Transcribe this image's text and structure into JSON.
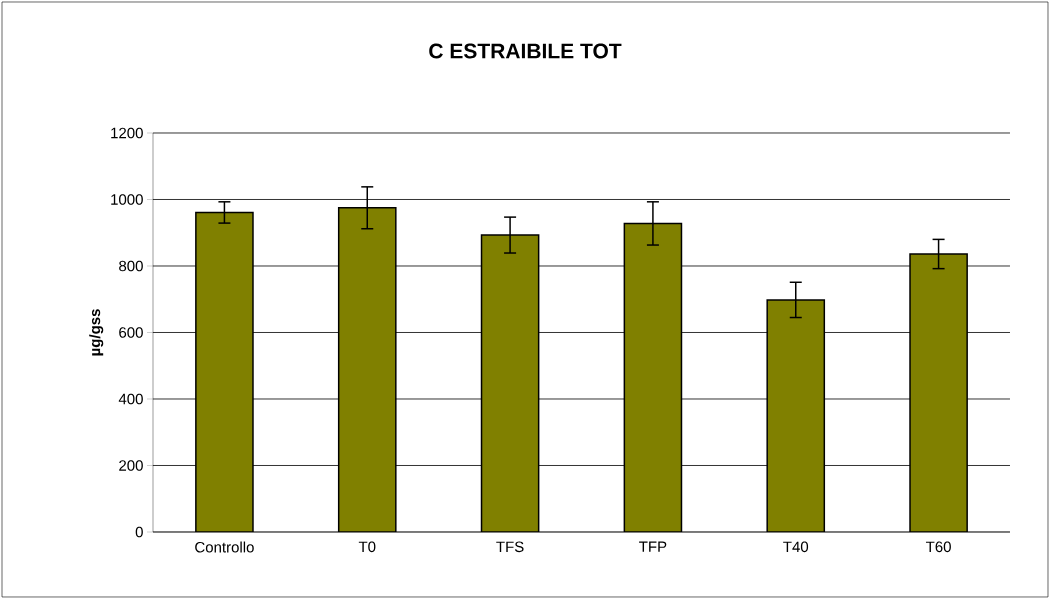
{
  "chart_data": {
    "type": "bar",
    "title": "C ESTRAIBILE TOT",
    "ylabel": "µg/gss",
    "categories": [
      "Controllo",
      "T0",
      "TFS",
      "TFP",
      "T40",
      "T60"
    ],
    "values": [
      961,
      975,
      893,
      928,
      698,
      836
    ],
    "errors": [
      32,
      63,
      54,
      65,
      53,
      44
    ],
    "color": "#808000",
    "ylim": [
      0,
      1200
    ],
    "yticks": [
      0,
      200,
      400,
      600,
      800,
      1000,
      1200
    ],
    "grid": "y"
  }
}
